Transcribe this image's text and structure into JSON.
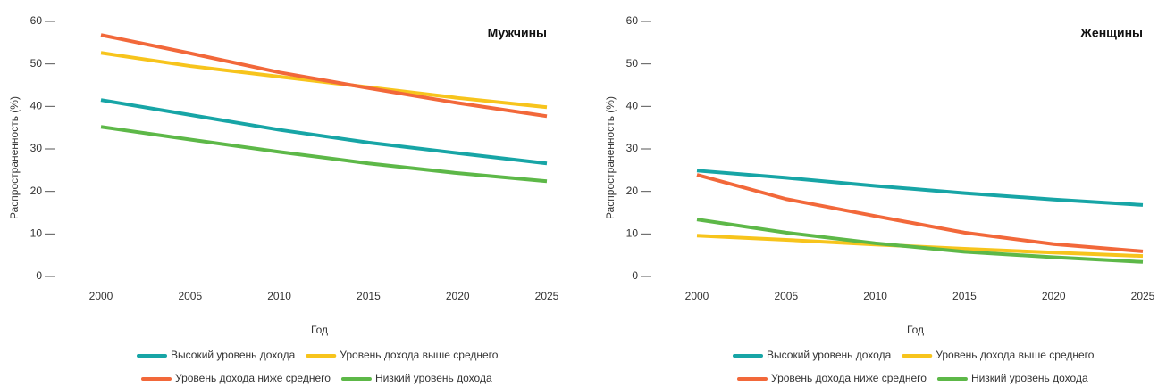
{
  "chart_data": [
    {
      "type": "line",
      "title": "Мужчины",
      "xlabel": "Год",
      "ylabel": "Распространенность (%)",
      "x": [
        2000,
        2005,
        2010,
        2015,
        2020,
        2025
      ],
      "xlim": [
        2000,
        2025
      ],
      "xticks": [
        2000,
        2005,
        2010,
        2015,
        2020,
        2025
      ],
      "ylim": [
        0,
        60
      ],
      "yticks": [
        0,
        10,
        20,
        30,
        40,
        50,
        60
      ],
      "series": [
        {
          "name": "Высокий уровень дохода",
          "color": "#17a5a6",
          "values": [
            41.5,
            38,
            34.5,
            31.5,
            29,
            26.6
          ]
        },
        {
          "name": "Уровень дохода выше среднего",
          "color": "#f7c41c",
          "values": [
            52.6,
            49.5,
            47,
            44.5,
            42,
            39.8
          ]
        },
        {
          "name": "Уровень дохода ниже среднего",
          "color": "#f2683a",
          "values": [
            56.8,
            52.5,
            48,
            44.3,
            40.8,
            37.7
          ]
        },
        {
          "name": "Низкий уровень дохода",
          "color": "#5db848",
          "values": [
            35.2,
            32.2,
            29.3,
            26.6,
            24.3,
            22.4
          ]
        }
      ]
    },
    {
      "type": "line",
      "title": "Женщины",
      "xlabel": "Год",
      "ylabel": "Распространенность (%)",
      "x": [
        2000,
        2005,
        2010,
        2015,
        2020,
        2025
      ],
      "xlim": [
        2000,
        2025
      ],
      "xticks": [
        2000,
        2005,
        2010,
        2015,
        2020,
        2025
      ],
      "ylim": [
        0,
        60
      ],
      "yticks": [
        0,
        10,
        20,
        30,
        40,
        50,
        60
      ],
      "series": [
        {
          "name": "Высокий уровень дохода",
          "color": "#17a5a6",
          "values": [
            24.9,
            23.2,
            21.3,
            19.6,
            18.1,
            16.8
          ]
        },
        {
          "name": "Уровень дохода выше среднего",
          "color": "#f7c41c",
          "values": [
            9.6,
            8.6,
            7.5,
            6.5,
            5.6,
            4.8
          ]
        },
        {
          "name": "Уровень дохода ниже среднего",
          "color": "#f2683a",
          "values": [
            23.9,
            18.2,
            14.2,
            10.3,
            7.6,
            5.9
          ]
        },
        {
          "name": "Низкий уровень дохода",
          "color": "#5db848",
          "values": [
            13.4,
            10.3,
            7.8,
            5.8,
            4.5,
            3.4
          ]
        }
      ]
    }
  ]
}
